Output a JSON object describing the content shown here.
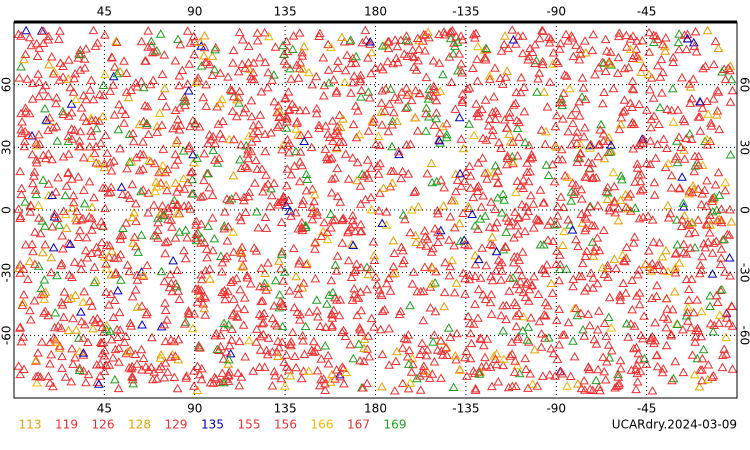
{
  "map": {
    "title": "UCARdry.2024-03-09",
    "lon_ticks": [
      45,
      90,
      135,
      180,
      -135,
      -90,
      -45
    ],
    "lat_ticks": [
      60,
      30,
      0,
      -30,
      -60
    ],
    "legend": [
      {
        "label": "113",
        "color": "#e8a000"
      },
      {
        "label": "119",
        "color": "#f03030"
      },
      {
        "label": "126",
        "color": "#f03030"
      },
      {
        "label": "128",
        "color": "#e8a000"
      },
      {
        "label": "129",
        "color": "#f03030"
      },
      {
        "label": "135",
        "color": "#0000c0"
      },
      {
        "label": "155",
        "color": "#f03030"
      },
      {
        "label": "156",
        "color": "#f03030"
      },
      {
        "label": "166",
        "color": "#f0b800"
      },
      {
        "label": "167",
        "color": "#f03030"
      },
      {
        "label": "169",
        "color": "#20a020"
      }
    ]
  }
}
